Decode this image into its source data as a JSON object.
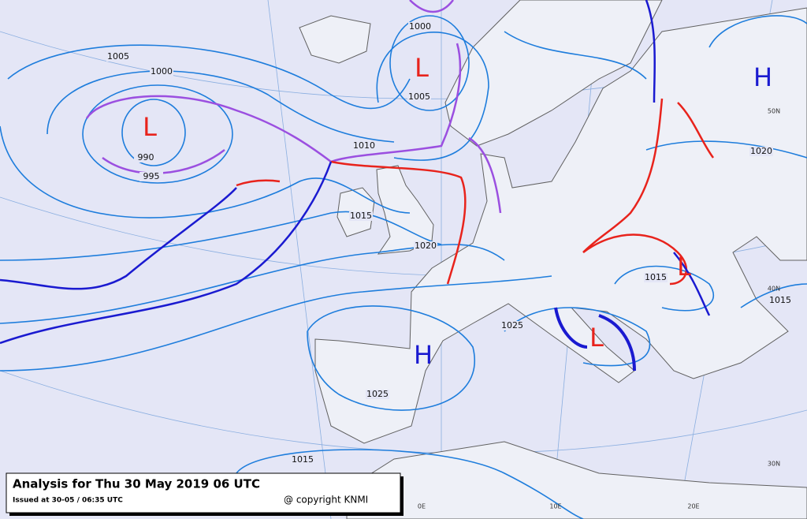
{
  "caption": {
    "title": "Analysis for Thu 30 May 2019 06 UTC",
    "issued": "Issued at 30-05 / 06:35 UTC",
    "copyright": "@ copyright KNMI"
  },
  "map": {
    "centers": [
      "L",
      "L",
      "H",
      "L",
      "L",
      "H"
    ],
    "isobar_labels": [
      1005,
      1000,
      990,
      995,
      1000,
      1005,
      1010,
      1015,
      1020,
      1015,
      1020,
      1015,
      1025,
      1015,
      1025
    ],
    "grid_labels": [
      "50N",
      "40N",
      "30N",
      "0E",
      "10E",
      "20E"
    ]
  }
}
